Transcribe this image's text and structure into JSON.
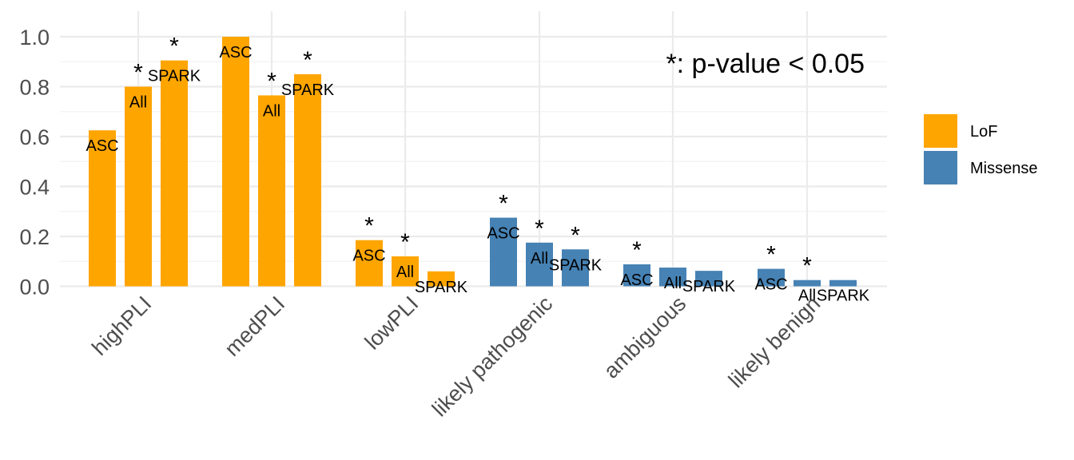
{
  "chart_data": {
    "type": "bar",
    "categories": [
      "highPLI",
      "medPLI",
      "lowPLI",
      "likely pathogenic",
      "ambiguous",
      "likely benign"
    ],
    "bar_labels": [
      "ASC",
      "All",
      "SPARK"
    ],
    "ylim": [
      0,
      1.1
    ],
    "yticks": [
      "0.0",
      "0.2",
      "0.4",
      "0.6",
      "0.8",
      "1.0"
    ],
    "ytick_values": [
      0,
      0.2,
      0.4,
      0.6,
      0.8,
      1.0
    ],
    "grid": true,
    "legend_position": "right",
    "annotation": "*: p-value < 0.05",
    "star_symbol": "*",
    "series": [
      {
        "name": "LoF",
        "color": "#FFA500",
        "categories": [
          "highPLI",
          "medPLI",
          "lowPLI"
        ],
        "values": [
          [
            0.625,
            0.8,
            0.905
          ],
          [
            1.0,
            0.765,
            0.85
          ],
          [
            0.185,
            0.12,
            0.06
          ]
        ],
        "significant": [
          [
            false,
            true,
            true
          ],
          [
            false,
            true,
            true
          ],
          [
            true,
            true,
            false
          ]
        ]
      },
      {
        "name": "Missense",
        "color": "#4682B4",
        "categories": [
          "likely pathogenic",
          "ambiguous",
          "likely benign"
        ],
        "values": [
          [
            0.275,
            0.175,
            0.148
          ],
          [
            0.088,
            0.075,
            0.062
          ],
          [
            0.07,
            0.025,
            0.025
          ]
        ],
        "significant": [
          [
            true,
            true,
            true
          ],
          [
            true,
            false,
            false
          ],
          [
            true,
            true,
            false
          ]
        ]
      }
    ]
  }
}
